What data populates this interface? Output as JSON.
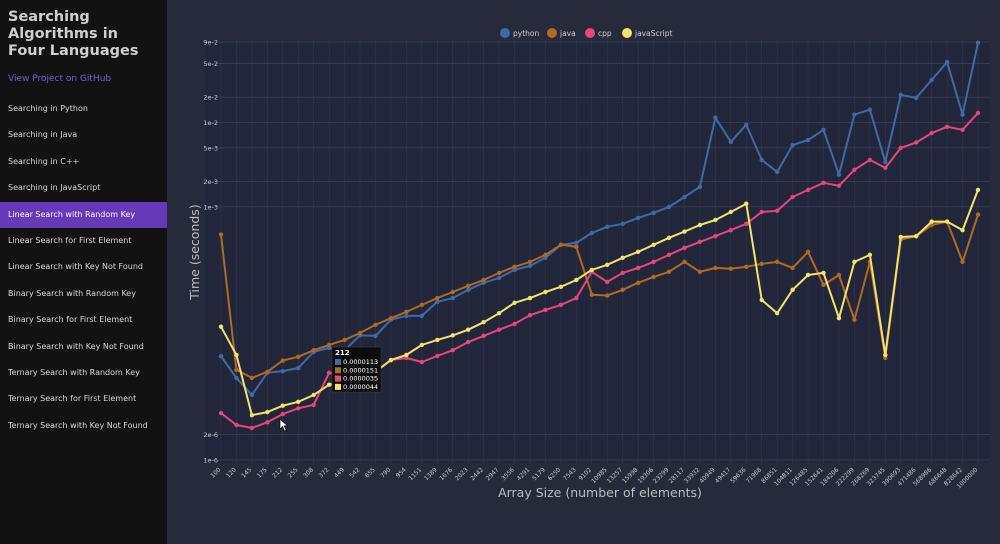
{
  "sidebar": {
    "title": "Searching Algorithms in Four Languages",
    "link": "View Project on GitHub",
    "active": 4,
    "items": [
      "Searching in Python",
      "Searching in Java",
      "Searching in C++",
      "Searching in JavaScript",
      "Linear Search with Random Key",
      "Linear Search for First Element",
      "Linear Search with Key Not Found",
      "Binary Search with Random Key",
      "Binary Search for First Element",
      "Binary Search with Key Not Found",
      "Ternary Search with Random Key",
      "Ternary Search for First Element",
      "Ternary Search with Key Not Found"
    ]
  },
  "chart_data": {
    "type": "line",
    "x_label": "Array Size (number of elements)",
    "y_label": "Time (seconds)",
    "log_y": true,
    "grid": true,
    "legend": "top",
    "categories": [
      "100",
      "120",
      "145",
      "175",
      "212",
      "255",
      "308",
      "372",
      "449",
      "542",
      "655",
      "790",
      "954",
      "1151",
      "1389",
      "1676",
      "2023",
      "2442",
      "2947",
      "3556",
      "4291",
      "5179",
      "6250",
      "7543",
      "9102",
      "10985",
      "13257",
      "15998",
      "19306",
      "23299",
      "28117",
      "33932",
      "40949",
      "49417",
      "59636",
      "71968",
      "86851",
      "104811",
      "126485",
      "152641",
      "184206",
      "222299",
      "268269",
      "323745",
      "390693",
      "471486",
      "568986",
      "686648",
      "828642",
      "1000000"
    ],
    "ylim": [
      1e-06,
      0.09
    ],
    "yticks": [
      {
        "value": 1e-06,
        "label": "1e-6"
      },
      {
        "value": 2e-06,
        "label": "2e-6"
      },
      {
        "value": 0.001,
        "label": "1e-3"
      },
      {
        "value": 0.002,
        "label": "2e-3"
      },
      {
        "value": 0.005,
        "label": "5e-3"
      },
      {
        "value": 0.01,
        "label": "1e-2"
      },
      {
        "value": 0.02,
        "label": "2e-2"
      },
      {
        "value": 0.05,
        "label": "5e-2"
      },
      {
        "value": 0.09,
        "label": "9e-2"
      }
    ],
    "series": [
      {
        "name": "python",
        "color": "#3f6aa6",
        "values": [
          1.7e-05,
          9.4e-06,
          5.9e-06,
          1.08e-05,
          1.13e-05,
          1.23e-05,
          1.91e-05,
          2.13e-05,
          2e-05,
          3e-05,
          2.96e-05,
          4.6e-05,
          5.1e-05,
          5.1e-05,
          7.5e-05,
          8.3e-05,
          0.000104,
          0.000126,
          0.000144,
          0.000179,
          0.0002,
          0.000249,
          0.000355,
          0.000375,
          0.00049,
          0.00058,
          0.00063,
          0.00074,
          0.00085,
          0.001,
          0.00131,
          0.00173,
          0.0114,
          0.0059,
          0.0094,
          0.0036,
          0.0026,
          0.0054,
          0.0062,
          0.0082,
          0.0024,
          0.0124,
          0.0142,
          0.0034,
          0.0213,
          0.0196,
          0.032,
          0.052,
          0.0124,
          0.088
        ]
      },
      {
        "name": "java",
        "color": "#b06a22",
        "values": [
          0.00047,
          1.17e-05,
          9.4e-06,
          1.11e-05,
          1.51e-05,
          1.67e-05,
          2e-05,
          2.31e-05,
          2.65e-05,
          3.2e-05,
          4e-05,
          4.8e-05,
          5.7e-05,
          6.9e-05,
          8.3e-05,
          9.8e-05,
          0.000116,
          0.000136,
          0.000165,
          0.000195,
          0.000223,
          0.00027,
          0.000355,
          0.000336,
          9.1e-05,
          8.9e-05,
          0.000104,
          0.000126,
          0.000148,
          0.00017,
          0.000223,
          0.00017,
          0.000189,
          0.000185,
          0.000195,
          0.000211,
          0.000223,
          0.000189,
          0.000293,
          0.000119,
          0.000156,
          4.6e-05,
          0.000223,
          1.62e-05,
          0.00041,
          0.00045,
          0.00061,
          0.00067,
          0.000223,
          0.00081
        ]
      },
      {
        "name": "cpp",
        "color": "#e8457a",
        "values": [
          3.6e-06,
          2.6e-06,
          2.4e-06,
          2.8e-06,
          3.5e-06,
          4.1e-06,
          4.5e-06,
          1.08e-05,
          1.02e-05,
          1.02e-05,
          1.11e-05,
          1.53e-05,
          1.62e-05,
          1.45e-05,
          1.71e-05,
          2e-05,
          2.5e-05,
          2.96e-05,
          3.5e-05,
          4.1e-05,
          5.2e-05,
          6e-05,
          6.9e-05,
          8.3e-05,
          0.00017,
          0.000129,
          0.000165,
          0.000189,
          0.000223,
          0.00027,
          0.000327,
          0.000385,
          0.00045,
          0.00053,
          0.00063,
          0.00087,
          0.0009,
          0.00131,
          0.00159,
          0.00193,
          0.00178,
          0.00275,
          0.0036,
          0.0029,
          0.005,
          0.0058,
          0.0075,
          0.0089,
          0.0082,
          0.013
        ]
      },
      {
        "name": "javaScript",
        "color": "#f3e36b",
        "values": [
          3.8e-05,
          1.76e-05,
          3.4e-06,
          3.7e-06,
          4.4e-06,
          4.9e-06,
          5.9e-06,
          7.8e-06,
          8.4e-06,
          9.4e-06,
          1.11e-05,
          1.53e-05,
          1.76e-05,
          2.31e-05,
          2.65e-05,
          3e-05,
          3.5e-05,
          4.3e-05,
          5.5e-05,
          7.3e-05,
          8.3e-05,
          9.8e-05,
          0.000113,
          0.000136,
          0.000179,
          0.000206,
          0.000249,
          0.000293,
          0.000355,
          0.00043,
          0.00051,
          0.00061,
          0.0007,
          0.00087,
          0.00109,
          7.9e-05,
          5.5e-05,
          0.000104,
          0.000156,
          0.000165,
          4.8e-05,
          0.000223,
          0.00027,
          1.76e-05,
          0.00044,
          0.00045,
          0.00067,
          0.00067,
          0.00053,
          0.00159
        ]
      }
    ],
    "tooltip_index": 4
  }
}
